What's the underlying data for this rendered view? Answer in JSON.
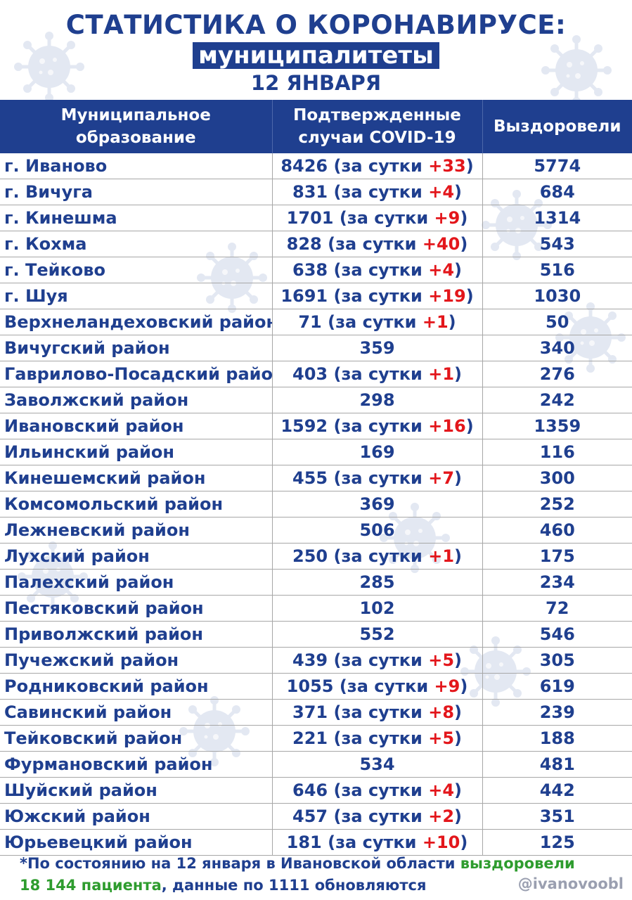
{
  "header": {
    "title": "СТАТИСТИКА О КОРОНАВИРУСЕ:",
    "subtitle": "муниципалитеты",
    "date": "12 ЯНВАРЯ"
  },
  "table": {
    "columns": {
      "name_line1": "Муниципальное",
      "name_line2": "образование",
      "cases_line1": "Подтвержденные",
      "cases_line2": "случаи COVID-19",
      "recovered": "Выздоровели"
    },
    "daily_prefix": "(за сутки ",
    "daily_suffix": ")",
    "rows": [
      {
        "name": "г. Иваново",
        "cases": "8426",
        "daily": "+33",
        "recovered": "5774"
      },
      {
        "name": "г. Вичуга",
        "cases": "831",
        "daily": "+4",
        "recovered": "684"
      },
      {
        "name": "г. Кинешма",
        "cases": "1701",
        "daily": "+9",
        "recovered": "1314"
      },
      {
        "name": "г. Кохма",
        "cases": "828",
        "daily": "+40",
        "recovered": "543"
      },
      {
        "name": "г. Тейково",
        "cases": "638",
        "daily": "+4",
        "recovered": "516"
      },
      {
        "name": "г. Шуя",
        "cases": "1691",
        "daily": "+19",
        "recovered": "1030"
      },
      {
        "name": "Верхнеландеховский район",
        "cases": "71",
        "daily": "+1",
        "recovered": "50"
      },
      {
        "name": "Вичугский район",
        "cases": "359",
        "daily": "",
        "recovered": "340"
      },
      {
        "name": "Гаврилово-Посадский район",
        "cases": "403",
        "daily": "+1",
        "recovered": "276"
      },
      {
        "name": "Заволжский район",
        "cases": "298",
        "daily": "",
        "recovered": "242"
      },
      {
        "name": "Ивановский район",
        "cases": "1592",
        "daily": "+16",
        "recovered": "1359"
      },
      {
        "name": "Ильинский район",
        "cases": "169",
        "daily": "",
        "recovered": "116"
      },
      {
        "name": "Кинешемский район",
        "cases": "455",
        "daily": "+7",
        "recovered": "300"
      },
      {
        "name": "Комсомольский район",
        "cases": "369",
        "daily": "",
        "recovered": "252"
      },
      {
        "name": "Лежневский район",
        "cases": "506",
        "daily": "",
        "recovered": "460"
      },
      {
        "name": "Лухский район",
        "cases": "250",
        "daily": "+1",
        "recovered": "175"
      },
      {
        "name": "Палехский район",
        "cases": "285",
        "daily": "",
        "recovered": "234"
      },
      {
        "name": "Пестяковский район",
        "cases": "102",
        "daily": "",
        "recovered": "72"
      },
      {
        "name": "Приволжский район",
        "cases": "552",
        "daily": "",
        "recovered": "546"
      },
      {
        "name": "Пучежский район",
        "cases": "439",
        "daily": "+5",
        "recovered": "305"
      },
      {
        "name": "Родниковский район",
        "cases": "1055",
        "daily": "+9",
        "recovered": "619"
      },
      {
        "name": "Савинский район",
        "cases": "371",
        "daily": "+8",
        "recovered": "239"
      },
      {
        "name": "Тейковский район",
        "cases": "221",
        "daily": "+5",
        "recovered": "188"
      },
      {
        "name": "Фурмановский район",
        "cases": "534",
        "daily": "",
        "recovered": "481"
      },
      {
        "name": "Шуйский район",
        "cases": "646",
        "daily": "+4",
        "recovered": "442"
      },
      {
        "name": "Южский район",
        "cases": "457",
        "daily": "+2",
        "recovered": "351"
      },
      {
        "name": "Юрьевецкий район",
        "cases": "181",
        "daily": "+10",
        "recovered": "125"
      }
    ]
  },
  "footnote": {
    "part1": "*По состоянию на 12 января в Ивановской области ",
    "part2": "выздоровели",
    "part3": "18 144 пациента",
    "part4": ", данные по 1111 обновляются"
  },
  "handle": "@ivanovoobl",
  "colors": {
    "primary": "#1f3f8f",
    "accent_red": "#e3161b",
    "accent_green": "#2e9c2e",
    "virus_decoration": "#c8d2e6"
  }
}
